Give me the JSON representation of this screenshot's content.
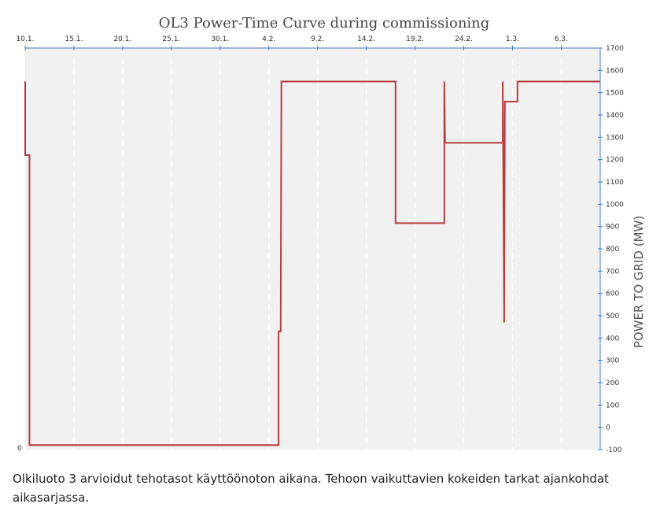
{
  "chart_data": {
    "type": "line",
    "title": "OL3 Power-Time Curve during commissioning",
    "xlabel": "",
    "ylabel": "POWER TO GRID (MW)",
    "x_tick_labels": [
      "10.1.",
      "15.1.",
      "20.1.",
      "25.1.",
      "30.1.",
      "4.2.",
      "9.2.",
      "14.2.",
      "19.2.",
      "24.2.",
      "1.3.",
      "6.3."
    ],
    "y_ticks": [
      1700,
      1600,
      1500,
      1400,
      1300,
      1200,
      1100,
      1000,
      900,
      800,
      700,
      600,
      500,
      400,
      300,
      200,
      100,
      0,
      -100
    ],
    "xlim": [
      "2023-01-10",
      "2023-03-10"
    ],
    "ylim": [
      -100,
      1700
    ],
    "origin_label": "0",
    "grid": true,
    "series": [
      {
        "color": "#b83c3c",
        "x": [
          "2023-01-10",
          "2023-01-10",
          "2023-01-10",
          "2023-01-10",
          "2023-01-10",
          "2023-01-10",
          "2023-02-05",
          "2023-02-05",
          "2023-02-05",
          "2023-02-05",
          "2023-02-05",
          "2023-02-05",
          "2023-02-17",
          "2023-02-17",
          "2023-02-22",
          "2023-02-22",
          "2023-02-22",
          "2023-02-28",
          "2023-02-28",
          "2023-02-28",
          "2023-02-28",
          "2023-02-28",
          "2023-02-28",
          "2023-03-01",
          "2023-03-01",
          "2023-03-10"
        ],
        "y": [
          1550,
          1220,
          1220,
          -80,
          -80,
          -80,
          -80,
          430,
          430,
          1550,
          1550,
          1550,
          1550,
          915,
          915,
          1550,
          1275,
          1275,
          1550,
          470,
          1460,
          1460,
          1460,
          1460,
          1550,
          1550
        ]
      }
    ]
  },
  "caption": "Olkiluoto 3 arvioidut tehotasot käyttöönoton aikana. Tehoon vaikuttavien kokeiden tarkat ajankohdat aikasarjassa."
}
